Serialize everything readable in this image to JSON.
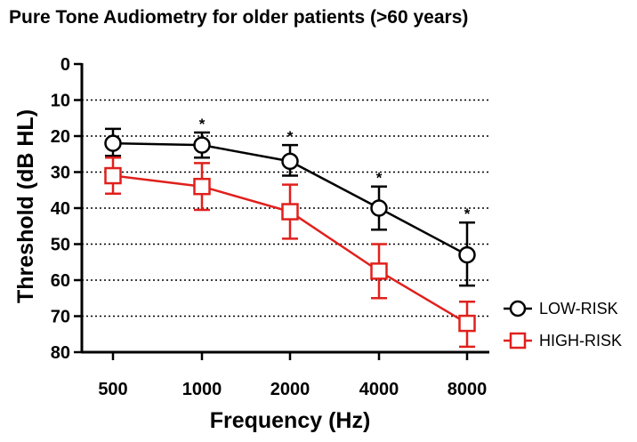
{
  "chart_data": {
    "type": "line",
    "title": "Pure Tone Audiometry for older patients (>60 years)",
    "xlabel": "Frequency (Hz)",
    "ylabel": "Threshold (dB HL)",
    "categories": [
      "500",
      "1000",
      "2000",
      "4000",
      "8000"
    ],
    "ylim": [
      0,
      80
    ],
    "y_inverted": true,
    "yticks": [
      "0",
      "10",
      "20",
      "30",
      "40",
      "50",
      "60",
      "70",
      "80"
    ],
    "grid": "horizontal dotted",
    "legend_position": "bottom-right",
    "significance_marker": "*",
    "significant_categories": [
      "1000",
      "2000",
      "4000",
      "8000"
    ],
    "series": [
      {
        "name": "LOW-RISK",
        "marker": "circle",
        "color": "#000000",
        "values": [
          22,
          22.5,
          27,
          40,
          53
        ],
        "error_low": [
          18,
          19,
          22.5,
          34,
          44
        ],
        "error_high": [
          25.5,
          26,
          31,
          46,
          61.5
        ]
      },
      {
        "name": "HIGH-RISK",
        "marker": "square",
        "color": "#e0201c",
        "values": [
          31,
          34,
          41,
          57.5,
          72
        ],
        "error_low": [
          26,
          27.5,
          33.5,
          50,
          66
        ],
        "error_high": [
          36,
          40.5,
          48.5,
          65,
          78.5
        ]
      }
    ]
  }
}
